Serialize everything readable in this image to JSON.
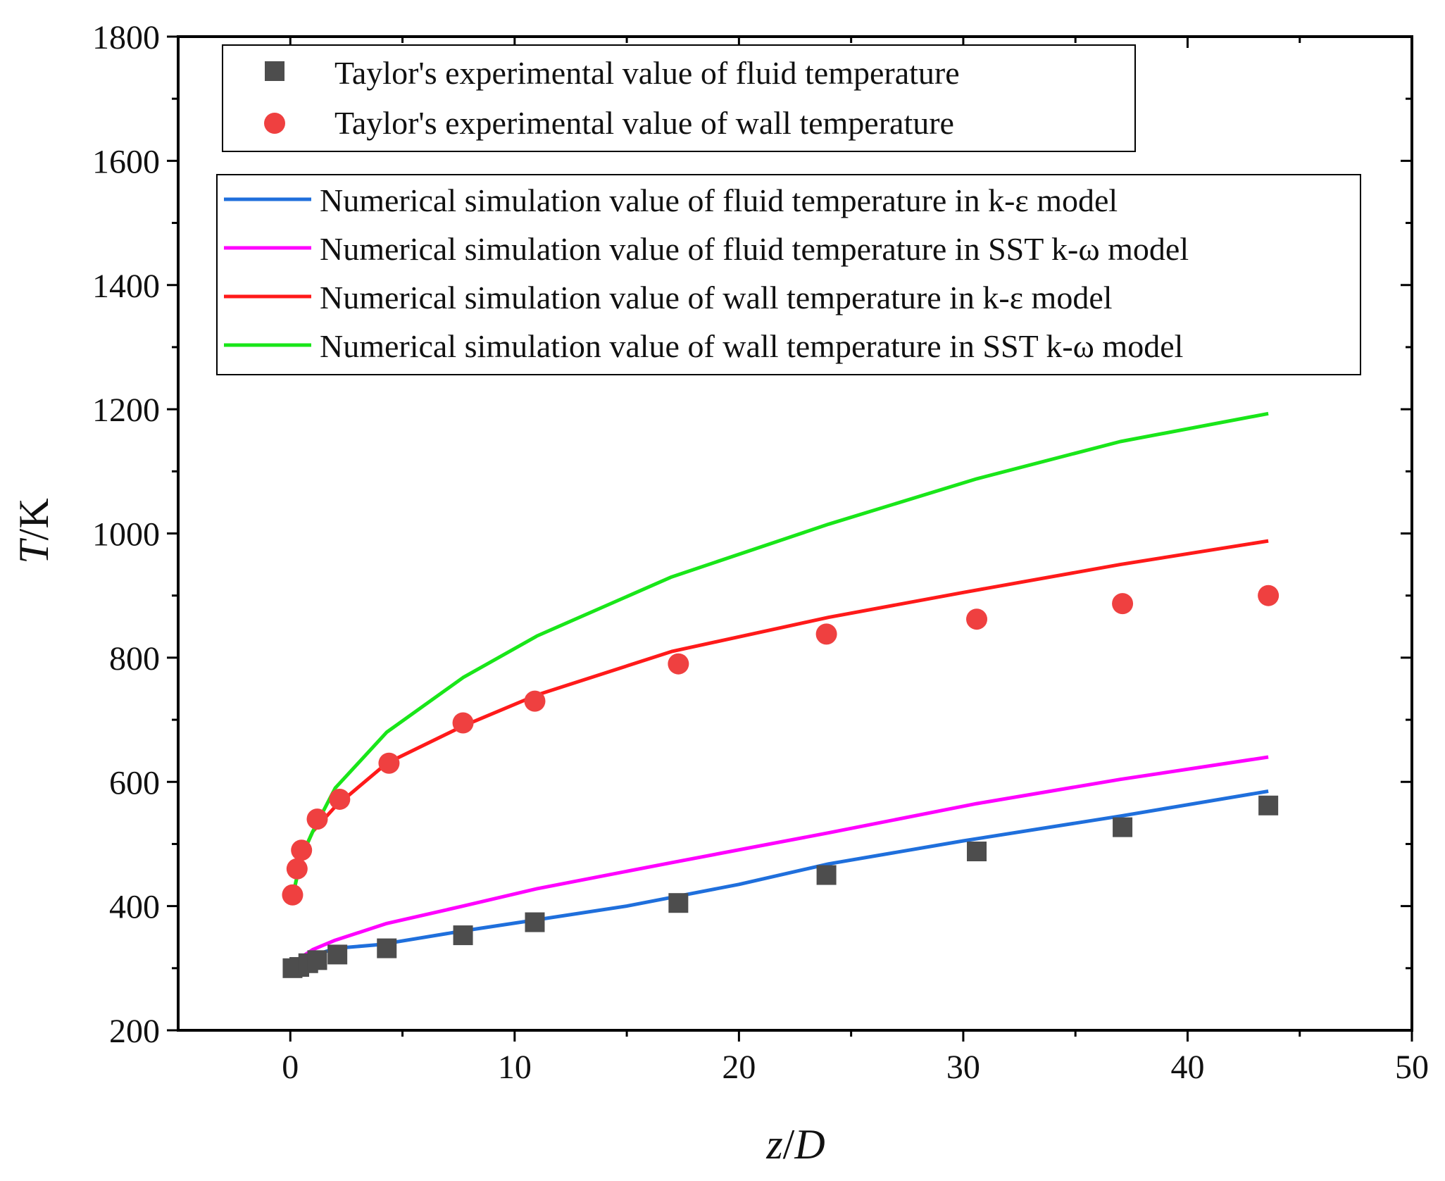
{
  "chart_data": {
    "type": "line",
    "xlabel": {
      "italic": "z",
      "plain": "/",
      "italic2": "D"
    },
    "ylabel": {
      "italic": "T",
      "plain": "/K"
    },
    "xlim": [
      -5,
      50
    ],
    "ylim": [
      200,
      1800
    ],
    "x_ticks": [
      0,
      10,
      20,
      30,
      40,
      50
    ],
    "y_ticks": [
      200,
      400,
      600,
      800,
      1000,
      1200,
      1400,
      1600,
      1800
    ],
    "x_tick_labels": [
      "0",
      "10",
      "20",
      "30",
      "40",
      "50"
    ],
    "y_tick_labels": [
      "200",
      "400",
      "600",
      "800",
      "1000",
      "1200",
      "1400",
      "1600",
      "1800"
    ],
    "series": [
      {
        "name": "Taylor's experimental value of fluid temperature",
        "kind": "scatter",
        "marker": "square",
        "color": "#4d4d4d",
        "x": [
          0.1,
          0.4,
          0.8,
          1.2,
          2.1,
          4.3,
          7.7,
          10.9,
          17.3,
          23.9,
          30.6,
          37.1,
          43.6
        ],
        "y": [
          300,
          302,
          308,
          313,
          322,
          332,
          353,
          374,
          405,
          450,
          488,
          527,
          562
        ]
      },
      {
        "name": "Taylor's experimental value of wall temperature",
        "kind": "scatter",
        "marker": "circle",
        "color": "#ef4040",
        "x": [
          0.1,
          0.3,
          0.5,
          1.2,
          2.2,
          4.4,
          7.7,
          10.9,
          17.3,
          23.9,
          30.6,
          37.1,
          43.6
        ],
        "y": [
          418,
          460,
          490,
          540,
          572,
          630,
          695,
          730,
          790,
          838,
          862,
          887,
          900
        ]
      },
      {
        "name": "Numerical simulation value of fluid temperature in k-ε model",
        "kind": "line",
        "color": "#1f6fdc",
        "x": [
          0.1,
          0.5,
          1,
          2,
          4,
          7.7,
          11,
          15,
          20,
          24,
          30,
          37,
          43.6
        ],
        "y": [
          302,
          312,
          320,
          332,
          338,
          360,
          378,
          400,
          435,
          468,
          505,
          545,
          585
        ]
      },
      {
        "name": "Numerical simulation value of fluid temperature in SST k-ω model",
        "kind": "line",
        "color": "#ff00ff",
        "x": [
          0.1,
          0.5,
          1,
          2,
          4.3,
          7.7,
          11,
          17,
          24,
          30.6,
          37,
          43.6
        ],
        "y": [
          305,
          318,
          330,
          345,
          372,
          400,
          428,
          470,
          518,
          565,
          604,
          640
        ]
      },
      {
        "name": "Numerical simulation value of wall temperature in k-ε model",
        "kind": "line",
        "color": "#ff1a1a",
        "x": [
          0.1,
          0.5,
          1,
          2,
          4.3,
          7.7,
          11,
          17,
          24,
          30,
          37,
          43.6
        ],
        "y": [
          415,
          480,
          520,
          560,
          630,
          690,
          740,
          810,
          865,
          905,
          950,
          988
        ]
      },
      {
        "name": "Numerical simulation value of wall temperature in SST k-ω model",
        "kind": "line",
        "color": "#19e619",
        "x": [
          0.1,
          0.5,
          1,
          2,
          4.3,
          7.7,
          11,
          17,
          24,
          30.6,
          37,
          43.6
        ],
        "y": [
          415,
          480,
          520,
          590,
          680,
          768,
          835,
          930,
          1015,
          1088,
          1148,
          1193
        ]
      }
    ],
    "legend_position": "top",
    "grid": false
  }
}
